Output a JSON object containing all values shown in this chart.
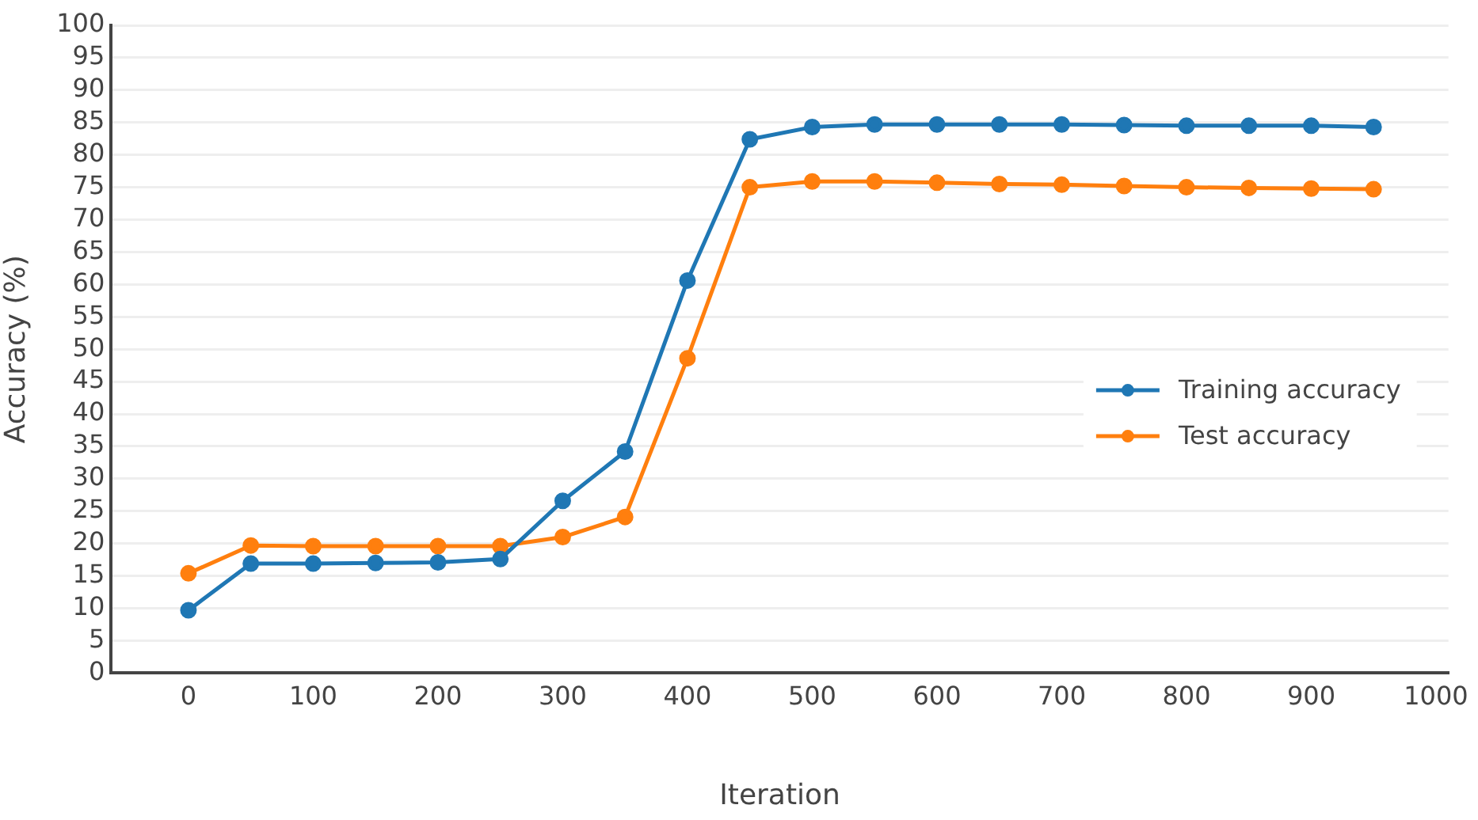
{
  "chart_data": {
    "type": "line",
    "xlabel": "Iteration",
    "ylabel": "Accuracy (%)",
    "x": [
      0,
      50,
      100,
      150,
      200,
      250,
      300,
      350,
      400,
      450,
      500,
      550,
      600,
      650,
      700,
      750,
      800,
      850,
      900,
      950
    ],
    "series": [
      {
        "name": "Training accuracy",
        "color": "#1f77b4",
        "values": [
          9.7,
          16.9,
          16.9,
          17.0,
          17.1,
          17.6,
          26.6,
          34.2,
          60.6,
          82.4,
          84.3,
          84.7,
          84.7,
          84.7,
          84.7,
          84.6,
          84.5,
          84.5,
          84.5,
          84.3
        ]
      },
      {
        "name": "Test accuracy",
        "color": "#ff7f0e",
        "values": [
          15.4,
          19.7,
          19.6,
          19.6,
          19.6,
          19.6,
          21.0,
          24.1,
          48.6,
          75.0,
          75.9,
          75.9,
          75.7,
          75.5,
          75.4,
          75.2,
          75.0,
          74.9,
          74.8,
          74.7
        ]
      }
    ],
    "xlim": [
      -62,
      1010
    ],
    "xticks": [
      0,
      100,
      200,
      300,
      400,
      500,
      600,
      700,
      800,
      900,
      1000
    ],
    "ylim": [
      0,
      100
    ],
    "yticks": [
      0,
      5,
      10,
      15,
      20,
      25,
      30,
      35,
      40,
      45,
      50,
      55,
      60,
      65,
      70,
      75,
      80,
      85,
      90,
      95,
      100
    ],
    "grid": "y",
    "legend": "right",
    "marker": "circle",
    "line_style": "solid"
  }
}
